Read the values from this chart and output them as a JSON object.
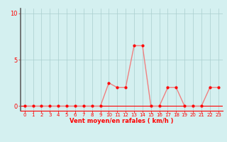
{
  "x": [
    0,
    1,
    2,
    3,
    4,
    5,
    6,
    7,
    8,
    9,
    10,
    11,
    12,
    13,
    14,
    15,
    16,
    17,
    18,
    19,
    20,
    21,
    22,
    23
  ],
  "y": [
    0,
    0,
    0,
    0,
    0,
    0,
    0,
    0,
    0,
    0,
    2.5,
    2.0,
    2.0,
    6.5,
    6.5,
    0,
    0,
    2.0,
    2.0,
    0,
    0,
    0,
    2.0,
    2.0
  ],
  "xlim": [
    -0.5,
    23.5
  ],
  "ylim": [
    -0.5,
    10.5
  ],
  "yticks": [
    0,
    5,
    10
  ],
  "xticks": [
    0,
    1,
    2,
    3,
    4,
    5,
    6,
    7,
    8,
    9,
    10,
    11,
    12,
    13,
    14,
    15,
    16,
    17,
    18,
    19,
    20,
    21,
    22,
    23
  ],
  "xlabel": "Vent moyen/en rafales ( km/h )",
  "line_color": "#f08080",
  "marker_color": "#ff0000",
  "bg_color": "#d4f0f0",
  "grid_color": "#aacece",
  "left_spine_color": "#606060",
  "tick_color": "#ff0000",
  "label_color": "#ff0000"
}
